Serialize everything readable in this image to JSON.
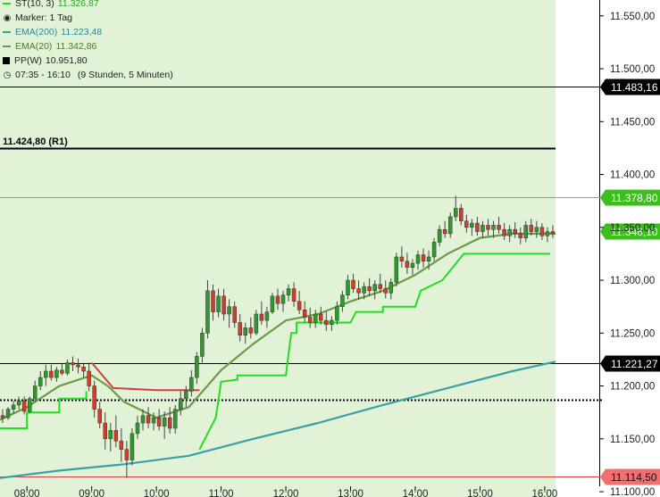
{
  "legend": {
    "st": {
      "label": "ST(10, 3)",
      "value": "11.326,87",
      "color": "#22dd22"
    },
    "marker": {
      "label": "Marker: 1 Tag"
    },
    "ema200": {
      "label": "EMA(200)",
      "value": "11.223,48",
      "color": "#3aa0a8"
    },
    "ema20": {
      "label": "EMA(20)",
      "value": "11.342,86",
      "color": "#6a9a4a"
    },
    "pp": {
      "label": "PP(W)",
      "value": "10.951,80",
      "color": "#000000"
    },
    "session": {
      "label": "07:35 - 16:10",
      "note": "(9 Stunden, 5 Minuten)"
    }
  },
  "chart_data": {
    "type": "candlestick",
    "ylim": [
      11095,
      11565
    ],
    "xlim": [
      "07:35",
      "16:10"
    ],
    "y_ticks": [
      "11.100,00",
      "11.150,00",
      "11.200,00",
      "11.250,00",
      "11.300,00",
      "11.350,00",
      "11.400,00",
      "11.450,00",
      "11.500,00",
      "11.550,00"
    ],
    "x_ticks": [
      "08:00",
      "09:00",
      "10:00",
      "11:00",
      "12:00",
      "13:00",
      "14:00",
      "15:00",
      "16:00"
    ],
    "levels": [
      {
        "value": 11483.16,
        "label": "11.483,16",
        "color": "#000000",
        "style": "solid",
        "tag": "dark"
      },
      {
        "value": 11424.8,
        "label": "11.424,80 (R1)",
        "color": "#000000",
        "style": "solid",
        "tag": "inline"
      },
      {
        "value": 11378.8,
        "label": "11.378,80",
        "color": "#5cc83a",
        "style": "solid",
        "tag": "green"
      },
      {
        "value": 11346.1,
        "label": "11.346,10",
        "color": "#5cc83a",
        "style": "none",
        "tag": "green"
      },
      {
        "value": 11221.27,
        "label": "11.221,27",
        "color": "#000000",
        "style": "solid",
        "tag": "dark"
      },
      {
        "value": 11187.0,
        "label": "",
        "color": "#000000",
        "style": "dotted",
        "tag": "none"
      },
      {
        "value": 11114.5,
        "label": "11.114,50",
        "color": "#d04040",
        "style": "solid",
        "tag": "red"
      }
    ],
    "candles": [
      {
        "t": "07:35",
        "o": 11172,
        "h": 11178,
        "l": 11165,
        "c": 11170
      },
      {
        "t": "07:40",
        "o": 11170,
        "h": 11180,
        "l": 11168,
        "c": 11178
      },
      {
        "t": "07:45",
        "o": 11178,
        "h": 11186,
        "l": 11174,
        "c": 11182
      },
      {
        "t": "07:50",
        "o": 11182,
        "h": 11190,
        "l": 11178,
        "c": 11186
      },
      {
        "t": "07:55",
        "o": 11186,
        "h": 11190,
        "l": 11173,
        "c": 11176
      },
      {
        "t": "08:00",
        "o": 11176,
        "h": 11190,
        "l": 11174,
        "c": 11188
      },
      {
        "t": "08:05",
        "o": 11188,
        "h": 11205,
        "l": 11185,
        "c": 11200
      },
      {
        "t": "08:10",
        "o": 11200,
        "h": 11214,
        "l": 11196,
        "c": 11208
      },
      {
        "t": "08:15",
        "o": 11208,
        "h": 11220,
        "l": 11200,
        "c": 11214
      },
      {
        "t": "08:20",
        "o": 11214,
        "h": 11220,
        "l": 11205,
        "c": 11208
      },
      {
        "t": "08:25",
        "o": 11208,
        "h": 11218,
        "l": 11204,
        "c": 11215
      },
      {
        "t": "08:30",
        "o": 11215,
        "h": 11222,
        "l": 11210,
        "c": 11212
      },
      {
        "t": "08:35",
        "o": 11212,
        "h": 11225,
        "l": 11210,
        "c": 11222
      },
      {
        "t": "08:40",
        "o": 11222,
        "h": 11228,
        "l": 11214,
        "c": 11220
      },
      {
        "t": "08:45",
        "o": 11220,
        "h": 11226,
        "l": 11212,
        "c": 11218
      },
      {
        "t": "08:50",
        "o": 11218,
        "h": 11222,
        "l": 11208,
        "c": 11214
      },
      {
        "t": "08:55",
        "o": 11214,
        "h": 11222,
        "l": 11195,
        "c": 11200
      },
      {
        "t": "09:00",
        "o": 11200,
        "h": 11205,
        "l": 11170,
        "c": 11178
      },
      {
        "t": "09:05",
        "o": 11178,
        "h": 11185,
        "l": 11160,
        "c": 11165
      },
      {
        "t": "09:10",
        "o": 11165,
        "h": 11175,
        "l": 11140,
        "c": 11150
      },
      {
        "t": "09:15",
        "o": 11150,
        "h": 11165,
        "l": 11138,
        "c": 11158
      },
      {
        "t": "09:20",
        "o": 11158,
        "h": 11172,
        "l": 11142,
        "c": 11148
      },
      {
        "t": "09:25",
        "o": 11148,
        "h": 11160,
        "l": 11128,
        "c": 11140
      },
      {
        "t": "09:30",
        "o": 11140,
        "h": 11148,
        "l": 11113,
        "c": 11130
      },
      {
        "t": "09:35",
        "o": 11130,
        "h": 11160,
        "l": 11125,
        "c": 11155
      },
      {
        "t": "09:40",
        "o": 11155,
        "h": 11172,
        "l": 11150,
        "c": 11165
      },
      {
        "t": "09:45",
        "o": 11165,
        "h": 11178,
        "l": 11158,
        "c": 11172
      },
      {
        "t": "09:50",
        "o": 11172,
        "h": 11180,
        "l": 11160,
        "c": 11165
      },
      {
        "t": "09:55",
        "o": 11165,
        "h": 11175,
        "l": 11158,
        "c": 11170
      },
      {
        "t": "10:00",
        "o": 11170,
        "h": 11178,
        "l": 11158,
        "c": 11162
      },
      {
        "t": "10:05",
        "o": 11162,
        "h": 11176,
        "l": 11150,
        "c": 11170
      },
      {
        "t": "10:10",
        "o": 11170,
        "h": 11180,
        "l": 11155,
        "c": 11160
      },
      {
        "t": "10:15",
        "o": 11160,
        "h": 11182,
        "l": 11155,
        "c": 11178
      },
      {
        "t": "10:20",
        "o": 11178,
        "h": 11195,
        "l": 11172,
        "c": 11188
      },
      {
        "t": "10:25",
        "o": 11188,
        "h": 11200,
        "l": 11180,
        "c": 11195
      },
      {
        "t": "10:30",
        "o": 11195,
        "h": 11215,
        "l": 11190,
        "c": 11208
      },
      {
        "t": "10:35",
        "o": 11208,
        "h": 11232,
        "l": 11202,
        "c": 11228
      },
      {
        "t": "10:40",
        "o": 11228,
        "h": 11255,
        "l": 11222,
        "c": 11250
      },
      {
        "t": "10:45",
        "o": 11250,
        "h": 11300,
        "l": 11245,
        "c": 11290
      },
      {
        "t": "10:50",
        "o": 11290,
        "h": 11296,
        "l": 11262,
        "c": 11270
      },
      {
        "t": "10:55",
        "o": 11270,
        "h": 11292,
        "l": 11265,
        "c": 11285
      },
      {
        "t": "11:00",
        "o": 11285,
        "h": 11292,
        "l": 11262,
        "c": 11268
      },
      {
        "t": "11:05",
        "o": 11268,
        "h": 11282,
        "l": 11255,
        "c": 11275
      },
      {
        "t": "11:10",
        "o": 11275,
        "h": 11280,
        "l": 11255,
        "c": 11260
      },
      {
        "t": "11:15",
        "o": 11260,
        "h": 11268,
        "l": 11242,
        "c": 11248
      },
      {
        "t": "11:20",
        "o": 11248,
        "h": 11260,
        "l": 11240,
        "c": 11255
      },
      {
        "t": "11:25",
        "o": 11255,
        "h": 11265,
        "l": 11245,
        "c": 11250
      },
      {
        "t": "11:30",
        "o": 11250,
        "h": 11272,
        "l": 11248,
        "c": 11268
      },
      {
        "t": "11:35",
        "o": 11268,
        "h": 11280,
        "l": 11258,
        "c": 11262
      },
      {
        "t": "11:40",
        "o": 11262,
        "h": 11275,
        "l": 11255,
        "c": 11270
      },
      {
        "t": "11:45",
        "o": 11270,
        "h": 11288,
        "l": 11268,
        "c": 11285
      },
      {
        "t": "11:50",
        "o": 11285,
        "h": 11292,
        "l": 11272,
        "c": 11278
      },
      {
        "t": "11:55",
        "o": 11278,
        "h": 11290,
        "l": 11270,
        "c": 11286
      },
      {
        "t": "12:00",
        "o": 11286,
        "h": 11296,
        "l": 11280,
        "c": 11292
      },
      {
        "t": "12:05",
        "o": 11292,
        "h": 11298,
        "l": 11275,
        "c": 11280
      },
      {
        "t": "12:10",
        "o": 11280,
        "h": 11290,
        "l": 11268,
        "c": 11272
      },
      {
        "t": "12:15",
        "o": 11272,
        "h": 11280,
        "l": 11260,
        "c": 11265
      },
      {
        "t": "12:20",
        "o": 11265,
        "h": 11274,
        "l": 11255,
        "c": 11260
      },
      {
        "t": "12:25",
        "o": 11260,
        "h": 11272,
        "l": 11255,
        "c": 11268
      },
      {
        "t": "12:30",
        "o": 11268,
        "h": 11275,
        "l": 11258,
        "c": 11262
      },
      {
        "t": "12:35",
        "o": 11262,
        "h": 11270,
        "l": 11252,
        "c": 11258
      },
      {
        "t": "12:40",
        "o": 11258,
        "h": 11266,
        "l": 11252,
        "c": 11262
      },
      {
        "t": "12:45",
        "o": 11262,
        "h": 11280,
        "l": 11258,
        "c": 11275
      },
      {
        "t": "12:50",
        "o": 11275,
        "h": 11290,
        "l": 11270,
        "c": 11286
      },
      {
        "t": "12:55",
        "o": 11286,
        "h": 11305,
        "l": 11282,
        "c": 11300
      },
      {
        "t": "13:00",
        "o": 11300,
        "h": 11306,
        "l": 11288,
        "c": 11292
      },
      {
        "t": "13:05",
        "o": 11292,
        "h": 11300,
        "l": 11282,
        "c": 11288
      },
      {
        "t": "13:10",
        "o": 11288,
        "h": 11298,
        "l": 11282,
        "c": 11294
      },
      {
        "t": "13:15",
        "o": 11294,
        "h": 11302,
        "l": 11285,
        "c": 11290
      },
      {
        "t": "13:20",
        "o": 11290,
        "h": 11300,
        "l": 11282,
        "c": 11296
      },
      {
        "t": "13:25",
        "o": 11296,
        "h": 11306,
        "l": 11288,
        "c": 11292
      },
      {
        "t": "13:30",
        "o": 11292,
        "h": 11300,
        "l": 11283,
        "c": 11288
      },
      {
        "t": "13:35",
        "o": 11288,
        "h": 11302,
        "l": 11282,
        "c": 11298
      },
      {
        "t": "13:40",
        "o": 11298,
        "h": 11326,
        "l": 11294,
        "c": 11322
      },
      {
        "t": "13:45",
        "o": 11322,
        "h": 11332,
        "l": 11312,
        "c": 11318
      },
      {
        "t": "13:50",
        "o": 11318,
        "h": 11326,
        "l": 11306,
        "c": 11312
      },
      {
        "t": "13:55",
        "o": 11312,
        "h": 11320,
        "l": 11305,
        "c": 11316
      },
      {
        "t": "14:00",
        "o": 11316,
        "h": 11328,
        "l": 11310,
        "c": 11324
      },
      {
        "t": "14:05",
        "o": 11324,
        "h": 11330,
        "l": 11312,
        "c": 11318
      },
      {
        "t": "14:10",
        "o": 11318,
        "h": 11328,
        "l": 11310,
        "c": 11322
      },
      {
        "t": "14:15",
        "o": 11322,
        "h": 11340,
        "l": 11318,
        "c": 11336
      },
      {
        "t": "14:20",
        "o": 11336,
        "h": 11352,
        "l": 11332,
        "c": 11348
      },
      {
        "t": "14:25",
        "o": 11348,
        "h": 11356,
        "l": 11340,
        "c": 11344
      },
      {
        "t": "14:30",
        "o": 11344,
        "h": 11364,
        "l": 11340,
        "c": 11360
      },
      {
        "t": "14:35",
        "o": 11360,
        "h": 11380,
        "l": 11356,
        "c": 11368
      },
      {
        "t": "14:40",
        "o": 11368,
        "h": 11372,
        "l": 11352,
        "c": 11356
      },
      {
        "t": "14:45",
        "o": 11356,
        "h": 11362,
        "l": 11345,
        "c": 11350
      },
      {
        "t": "14:50",
        "o": 11350,
        "h": 11358,
        "l": 11342,
        "c": 11354
      },
      {
        "t": "14:55",
        "o": 11354,
        "h": 11360,
        "l": 11342,
        "c": 11346
      },
      {
        "t": "15:00",
        "o": 11346,
        "h": 11356,
        "l": 11340,
        "c": 11352
      },
      {
        "t": "15:05",
        "o": 11352,
        "h": 11358,
        "l": 11342,
        "c": 11348
      },
      {
        "t": "15:10",
        "o": 11348,
        "h": 11356,
        "l": 11340,
        "c": 11352
      },
      {
        "t": "15:15",
        "o": 11352,
        "h": 11360,
        "l": 11344,
        "c": 11348
      },
      {
        "t": "15:20",
        "o": 11348,
        "h": 11354,
        "l": 11338,
        "c": 11342
      },
      {
        "t": "15:25",
        "o": 11342,
        "h": 11352,
        "l": 11336,
        "c": 11348
      },
      {
        "t": "15:30",
        "o": 11348,
        "h": 11355,
        "l": 11340,
        "c": 11344
      },
      {
        "t": "15:35",
        "o": 11344,
        "h": 11350,
        "l": 11334,
        "c": 11340
      },
      {
        "t": "15:40",
        "o": 11340,
        "h": 11356,
        "l": 11336,
        "c": 11352
      },
      {
        "t": "15:45",
        "o": 11352,
        "h": 11358,
        "l": 11342,
        "c": 11346
      },
      {
        "t": "15:50",
        "o": 11346,
        "h": 11356,
        "l": 11340,
        "c": 11350
      },
      {
        "t": "15:55",
        "o": 11350,
        "h": 11354,
        "l": 11338,
        "c": 11342
      },
      {
        "t": "16:00",
        "o": 11342,
        "h": 11350,
        "l": 11336,
        "c": 11346
      },
      {
        "t": "16:05",
        "o": 11346,
        "h": 11352,
        "l": 11340,
        "c": 11344
      }
    ],
    "series": [
      {
        "name": "EMA(20)",
        "color": "#6a9a4a",
        "points": [
          [
            "07:35",
            11168
          ],
          [
            "08:00",
            11180
          ],
          [
            "08:30",
            11200
          ],
          [
            "09:00",
            11210
          ],
          [
            "09:15",
            11200
          ],
          [
            "09:30",
            11185
          ],
          [
            "10:00",
            11170
          ],
          [
            "10:30",
            11180
          ],
          [
            "11:00",
            11215
          ],
          [
            "11:30",
            11240
          ],
          [
            "12:00",
            11262
          ],
          [
            "12:30",
            11268
          ],
          [
            "13:00",
            11280
          ],
          [
            "13:30",
            11290
          ],
          [
            "14:00",
            11305
          ],
          [
            "14:30",
            11325
          ],
          [
            "15:00",
            11340
          ],
          [
            "15:30",
            11344
          ],
          [
            "16:10",
            11344
          ]
        ]
      },
      {
        "name": "EMA(200)",
        "color": "#3aa0a8",
        "points": [
          [
            "07:35",
            11113
          ],
          [
            "08:30",
            11120
          ],
          [
            "09:30",
            11126
          ],
          [
            "10:30",
            11134
          ],
          [
            "11:30",
            11150
          ],
          [
            "12:30",
            11165
          ],
          [
            "13:30",
            11182
          ],
          [
            "14:30",
            11198
          ],
          [
            "15:30",
            11214
          ],
          [
            "16:10",
            11223
          ]
        ]
      }
    ],
    "supertrend": {
      "name": "ST(10, 3)",
      "segments": [
        {
          "color": "#22dd22",
          "points": [
            [
              "07:35",
              11160
            ],
            [
              "08:00",
              11160
            ],
            [
              "08:00",
              11175
            ],
            [
              "08:30",
              11175
            ],
            [
              "08:30",
              11188
            ],
            [
              "08:55",
              11188
            ],
            [
              "08:55",
              11195
            ]
          ]
        },
        {
          "color": "#d04040",
          "points": [
            [
              "09:00",
              11222
            ],
            [
              "09:20",
              11198
            ],
            [
              "10:00",
              11196
            ],
            [
              "10:40",
              11196
            ]
          ]
        },
        {
          "color": "#22dd22",
          "points": [
            [
              "10:40",
              11140
            ],
            [
              "10:55",
              11170
            ],
            [
              "11:00",
              11204
            ],
            [
              "11:15",
              11206
            ],
            [
              "11:15",
              11210
            ],
            [
              "12:00",
              11210
            ],
            [
              "12:05",
              11250
            ],
            [
              "12:10",
              11250
            ],
            [
              "12:10",
              11260
            ],
            [
              "13:00",
              11260
            ],
            [
              "13:05",
              11270
            ],
            [
              "13:30",
              11270
            ],
            [
              "13:30",
              11275
            ],
            [
              "14:00",
              11275
            ],
            [
              "14:05",
              11290
            ],
            [
              "14:25",
              11300
            ],
            [
              "14:45",
              11325
            ],
            [
              "16:05",
              11325
            ]
          ]
        }
      ]
    }
  }
}
